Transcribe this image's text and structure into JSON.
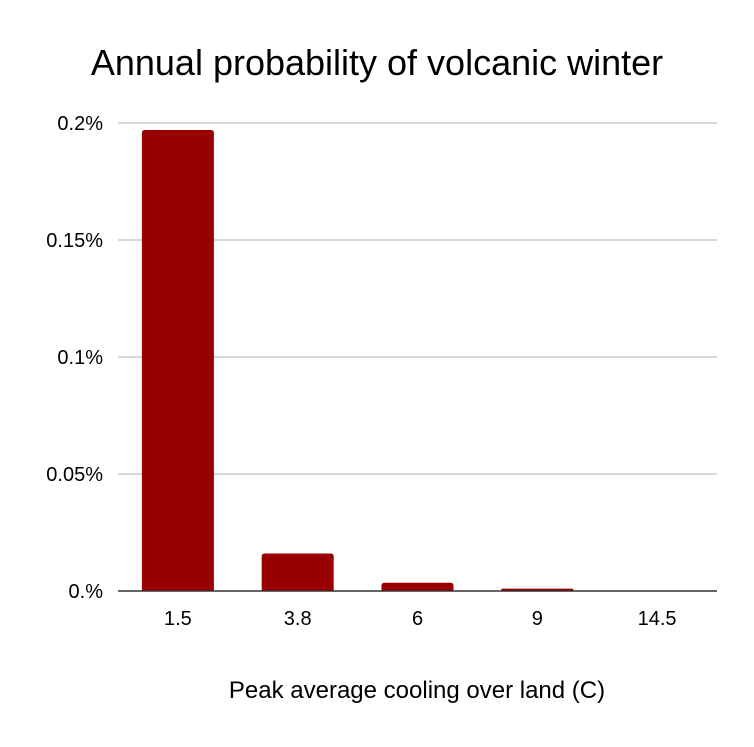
{
  "chart_data": {
    "type": "bar",
    "title": "Annual probability of volcanic winter",
    "xlabel": "Peak average cooling over land (C)",
    "ylabel": "",
    "categories": [
      "1.5",
      "3.8",
      "6",
      "9",
      "14.5"
    ],
    "values": [
      0.197,
      0.016,
      0.0035,
      0.001,
      0.0
    ],
    "yticks": [
      0,
      0.05,
      0.1,
      0.15,
      0.2
    ],
    "ytick_labels": [
      "0.%",
      "0.05%",
      "0.1%",
      "0.15%",
      "0.2%"
    ],
    "ylim": [
      0,
      0.2
    ],
    "grid": true,
    "legend": "none",
    "bar_color": "#990000",
    "grid_color": "#cccccc",
    "axis_color": "#333333"
  }
}
